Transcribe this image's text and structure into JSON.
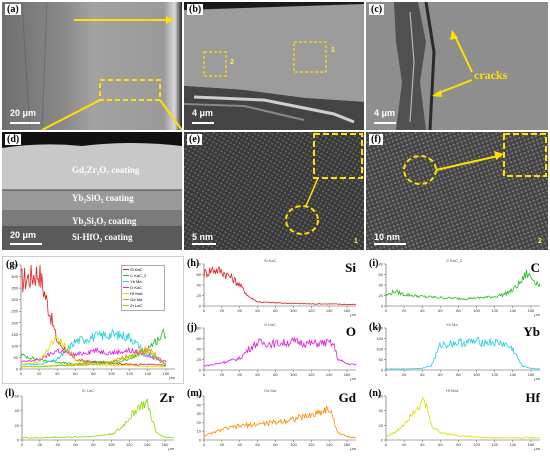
{
  "figure": {
    "panels": {
      "a": {
        "label": "(a)",
        "scale": "20 μm"
      },
      "b": {
        "label": "(b)",
        "scale": "4 μm",
        "region1": "1",
        "region2": "2"
      },
      "c": {
        "label": "(c)",
        "scale": "4 μm",
        "annotation": "cracks"
      },
      "d": {
        "label": "(d)",
        "scale": "20 μm",
        "layers": [
          "Gd₂Zr₂O₇ coating",
          "Yb₂SiO₅ coating",
          "Yb₂Si₂O₇ coating",
          "Si-HfO₂ coating"
        ]
      },
      "e": {
        "label": "(e)",
        "scale": "5 nm",
        "index": "1"
      },
      "f": {
        "label": "(f)",
        "scale": "10 nm",
        "index": "2"
      }
    },
    "eds": {
      "g": {
        "label": "(g)",
        "legend": [
          "Si KaC",
          "C KaC_2",
          "Yb Ma",
          "O KaC",
          "Hf Ma1",
          "Gd Ma",
          "Zr LaC"
        ]
      },
      "h": {
        "label": "(h)",
        "element": "Si",
        "title": "Si KaC"
      },
      "i": {
        "label": "(i)",
        "element": "C",
        "title": "C KaC_2"
      },
      "j": {
        "label": "(j)",
        "element": "O",
        "title": "O KaC"
      },
      "k": {
        "label": "(k)",
        "element": "Yb",
        "title": "Yb Ma"
      },
      "l": {
        "label": "(l)",
        "element": "Zr",
        "title": "Zr LaC"
      },
      "m": {
        "label": "(m)",
        "element": "Gd",
        "title": "Gd Ma"
      },
      "n": {
        "label": "(n)",
        "element": "Hf",
        "title": "Hf Ma1"
      }
    },
    "axis_unit": "μm"
  },
  "chart_data": [
    {
      "id": "g",
      "type": "line",
      "x": [
        0,
        20,
        40,
        60,
        80,
        100,
        120,
        140,
        160
      ],
      "xlim": [
        0,
        170
      ],
      "ylim": [
        0,
        450
      ],
      "yticks": [
        0,
        50,
        100,
        150,
        200,
        250,
        300,
        350,
        400,
        450
      ],
      "series": [
        {
          "name": "Si KaC",
          "color": "#e02020",
          "values": [
            380,
            420,
            120,
            40,
            30,
            25,
            20,
            20,
            15
          ]
        },
        {
          "name": "C KaC_2",
          "color": "#22bb22",
          "values": [
            60,
            40,
            30,
            20,
            30,
            30,
            40,
            90,
            160
          ]
        },
        {
          "name": "Yb Ma",
          "color": "#22ccdd",
          "values": [
            20,
            20,
            40,
            120,
            140,
            150,
            140,
            60,
            20
          ]
        },
        {
          "name": "O KaC",
          "color": "#dd22dd",
          "values": [
            30,
            40,
            80,
            60,
            80,
            70,
            80,
            60,
            30
          ]
        },
        {
          "name": "Hf Ma1",
          "color": "#dddd00",
          "values": [
            20,
            30,
            140,
            40,
            20,
            15,
            15,
            10,
            10
          ]
        },
        {
          "name": "Gd Ma",
          "color": "#ff8800",
          "values": [
            10,
            10,
            15,
            20,
            20,
            30,
            60,
            90,
            20
          ]
        },
        {
          "name": "Zr LaC",
          "color": "#88dd00",
          "values": [
            10,
            10,
            15,
            15,
            20,
            25,
            50,
            80,
            15
          ]
        }
      ]
    },
    {
      "id": "h",
      "type": "line",
      "color": "#e02020",
      "xlim": [
        0,
        170
      ],
      "ylim": [
        0,
        80
      ],
      "yticks": [
        0,
        20,
        40,
        60,
        80
      ],
      "x": [
        0,
        10,
        20,
        30,
        40,
        50,
        60,
        80,
        100,
        120,
        140,
        160,
        170
      ],
      "values": [
        62,
        70,
        66,
        55,
        40,
        18,
        8,
        6,
        5,
        4,
        4,
        3,
        3
      ]
    },
    {
      "id": "i",
      "type": "line",
      "color": "#22bb22",
      "xlim": [
        0,
        170
      ],
      "ylim": [
        0,
        80
      ],
      "yticks": [
        0,
        20,
        40,
        60,
        80
      ],
      "x": [
        0,
        10,
        20,
        40,
        60,
        80,
        100,
        120,
        130,
        140,
        150,
        155,
        160,
        170
      ],
      "values": [
        20,
        28,
        22,
        18,
        16,
        14,
        15,
        18,
        22,
        30,
        48,
        62,
        55,
        40
      ]
    },
    {
      "id": "j",
      "type": "line",
      "color": "#dd22dd",
      "xlim": [
        0,
        170
      ],
      "ylim": [
        0,
        80
      ],
      "yticks": [
        0,
        20,
        40,
        60,
        80
      ],
      "x": [
        0,
        10,
        20,
        30,
        40,
        50,
        60,
        80,
        100,
        120,
        140,
        145,
        150,
        160,
        170
      ],
      "values": [
        8,
        10,
        14,
        18,
        22,
        40,
        52,
        50,
        54,
        50,
        52,
        48,
        20,
        12,
        10
      ]
    },
    {
      "id": "k",
      "type": "line",
      "color": "#22ccdd",
      "xlim": [
        0,
        170
      ],
      "ylim": [
        0,
        200
      ],
      "yticks": [
        0,
        50,
        100,
        150,
        200
      ],
      "x": [
        0,
        20,
        40,
        50,
        60,
        80,
        100,
        120,
        130,
        140,
        150,
        160,
        170
      ],
      "values": [
        5,
        5,
        8,
        20,
        120,
        130,
        135,
        130,
        125,
        100,
        20,
        8,
        5
      ]
    },
    {
      "id": "l",
      "type": "line",
      "color": "#88dd00",
      "xlim": [
        0,
        170
      ],
      "ylim": [
        0,
        60
      ],
      "yticks": [
        0,
        20,
        40,
        60
      ],
      "x": [
        0,
        20,
        40,
        60,
        80,
        100,
        110,
        120,
        130,
        140,
        150,
        160,
        170
      ],
      "values": [
        3,
        3,
        4,
        4,
        5,
        8,
        15,
        30,
        45,
        50,
        10,
        4,
        3
      ]
    },
    {
      "id": "m",
      "type": "line",
      "color": "#ff8800",
      "xlim": [
        0,
        170
      ],
      "ylim": [
        0,
        50
      ],
      "yticks": [
        0,
        10,
        20,
        30,
        40,
        50
      ],
      "x": [
        0,
        10,
        20,
        40,
        60,
        80,
        100,
        120,
        130,
        140,
        150,
        160,
        170
      ],
      "values": [
        5,
        8,
        12,
        16,
        18,
        20,
        24,
        28,
        32,
        36,
        8,
        4,
        3
      ]
    },
    {
      "id": "n",
      "type": "line",
      "color": "#dddd00",
      "xlim": [
        0,
        170
      ],
      "ylim": [
        0,
        60
      ],
      "yticks": [
        0,
        20,
        40,
        60
      ],
      "x": [
        0,
        10,
        20,
        30,
        40,
        45,
        50,
        60,
        80,
        100,
        120,
        140,
        160,
        170
      ],
      "values": [
        5,
        10,
        22,
        40,
        52,
        45,
        20,
        10,
        6,
        4,
        3,
        3,
        3,
        3
      ]
    }
  ]
}
